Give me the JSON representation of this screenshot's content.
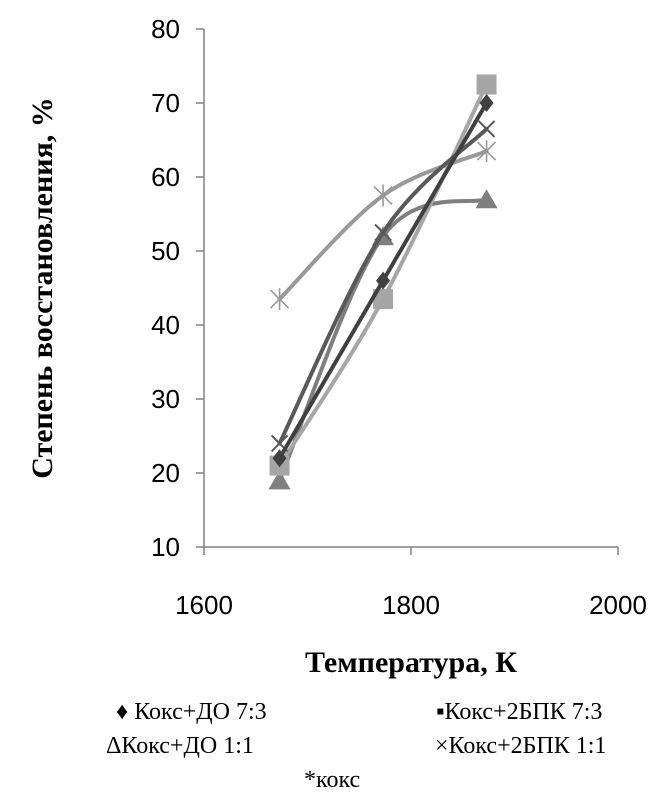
{
  "chart_data": {
    "type": "line",
    "xlabel": "Температура, К",
    "ylabel": "Степень восстановления, %",
    "xlim": [
      1600,
      2000
    ],
    "ylim": [
      10,
      80
    ],
    "xticks": [
      1600,
      1800,
      2000
    ],
    "yticks": [
      10,
      20,
      30,
      40,
      50,
      60,
      70,
      80
    ],
    "xtick_labels": [
      "1600",
      "1800",
      "2000"
    ],
    "ytick_labels": [
      "10",
      "20",
      "30",
      "40",
      "50",
      "60",
      "70",
      "80"
    ],
    "grid": false,
    "legend_position": "bottom",
    "series": [
      {
        "name": "Кокс+ДО 7:3",
        "marker": "diamond",
        "color": "#404040",
        "x": [
          1673,
          1773,
          1873
        ],
        "y": [
          22,
          46,
          70
        ]
      },
      {
        "name": "Кокс+2БПК 7:3",
        "marker": "square",
        "color": "#a6a6a6",
        "x": [
          1673,
          1773,
          1873
        ],
        "y": [
          21,
          43.5,
          72.5
        ]
      },
      {
        "name": "Кокс+ДО 1:1",
        "marker": "triangle",
        "color": "#7f7f7f",
        "x": [
          1673,
          1773,
          1873
        ],
        "y": [
          19,
          52,
          57
        ]
      },
      {
        "name": "Кокс+2БПК 1:1",
        "marker": "x",
        "color": "#595959",
        "x": [
          1673,
          1773,
          1873
        ],
        "y": [
          24,
          52.5,
          66.5
        ]
      },
      {
        "name": "кокс",
        "marker": "star",
        "color": "#999999",
        "x": [
          1673,
          1773,
          1873
        ],
        "y": [
          43.5,
          57.5,
          63.5
        ]
      }
    ]
  },
  "legend": {
    "row1_left": "♦ Кокс+ДО 7:3",
    "row1_right": "▪Кокс+2БПК 7:3",
    "row2_left": "ΔКокс+ДО 1:1",
    "row2_right": "×Кокс+2БПК 1:1",
    "row3_center": "*кокс"
  }
}
